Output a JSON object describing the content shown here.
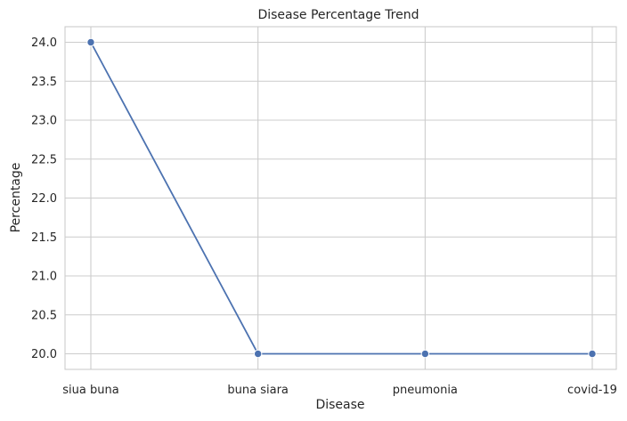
{
  "chart_data": {
    "type": "line",
    "title": "Disease Percentage Trend",
    "xlabel": "Disease",
    "ylabel": "Percentage",
    "categories": [
      "siua buna",
      "buna siara",
      "pneumonia",
      "covid-19"
    ],
    "series": [
      {
        "values": [
          24.0,
          20.0,
          20.0,
          20.0
        ],
        "color": "#4c72b0"
      }
    ],
    "ylim": [
      19.8,
      24.2
    ],
    "yticks": [
      "20.0",
      "20.5",
      "21.0",
      "21.5",
      "22.0",
      "22.5",
      "23.0",
      "23.5",
      "24.0"
    ],
    "grid": true,
    "markers": true
  }
}
